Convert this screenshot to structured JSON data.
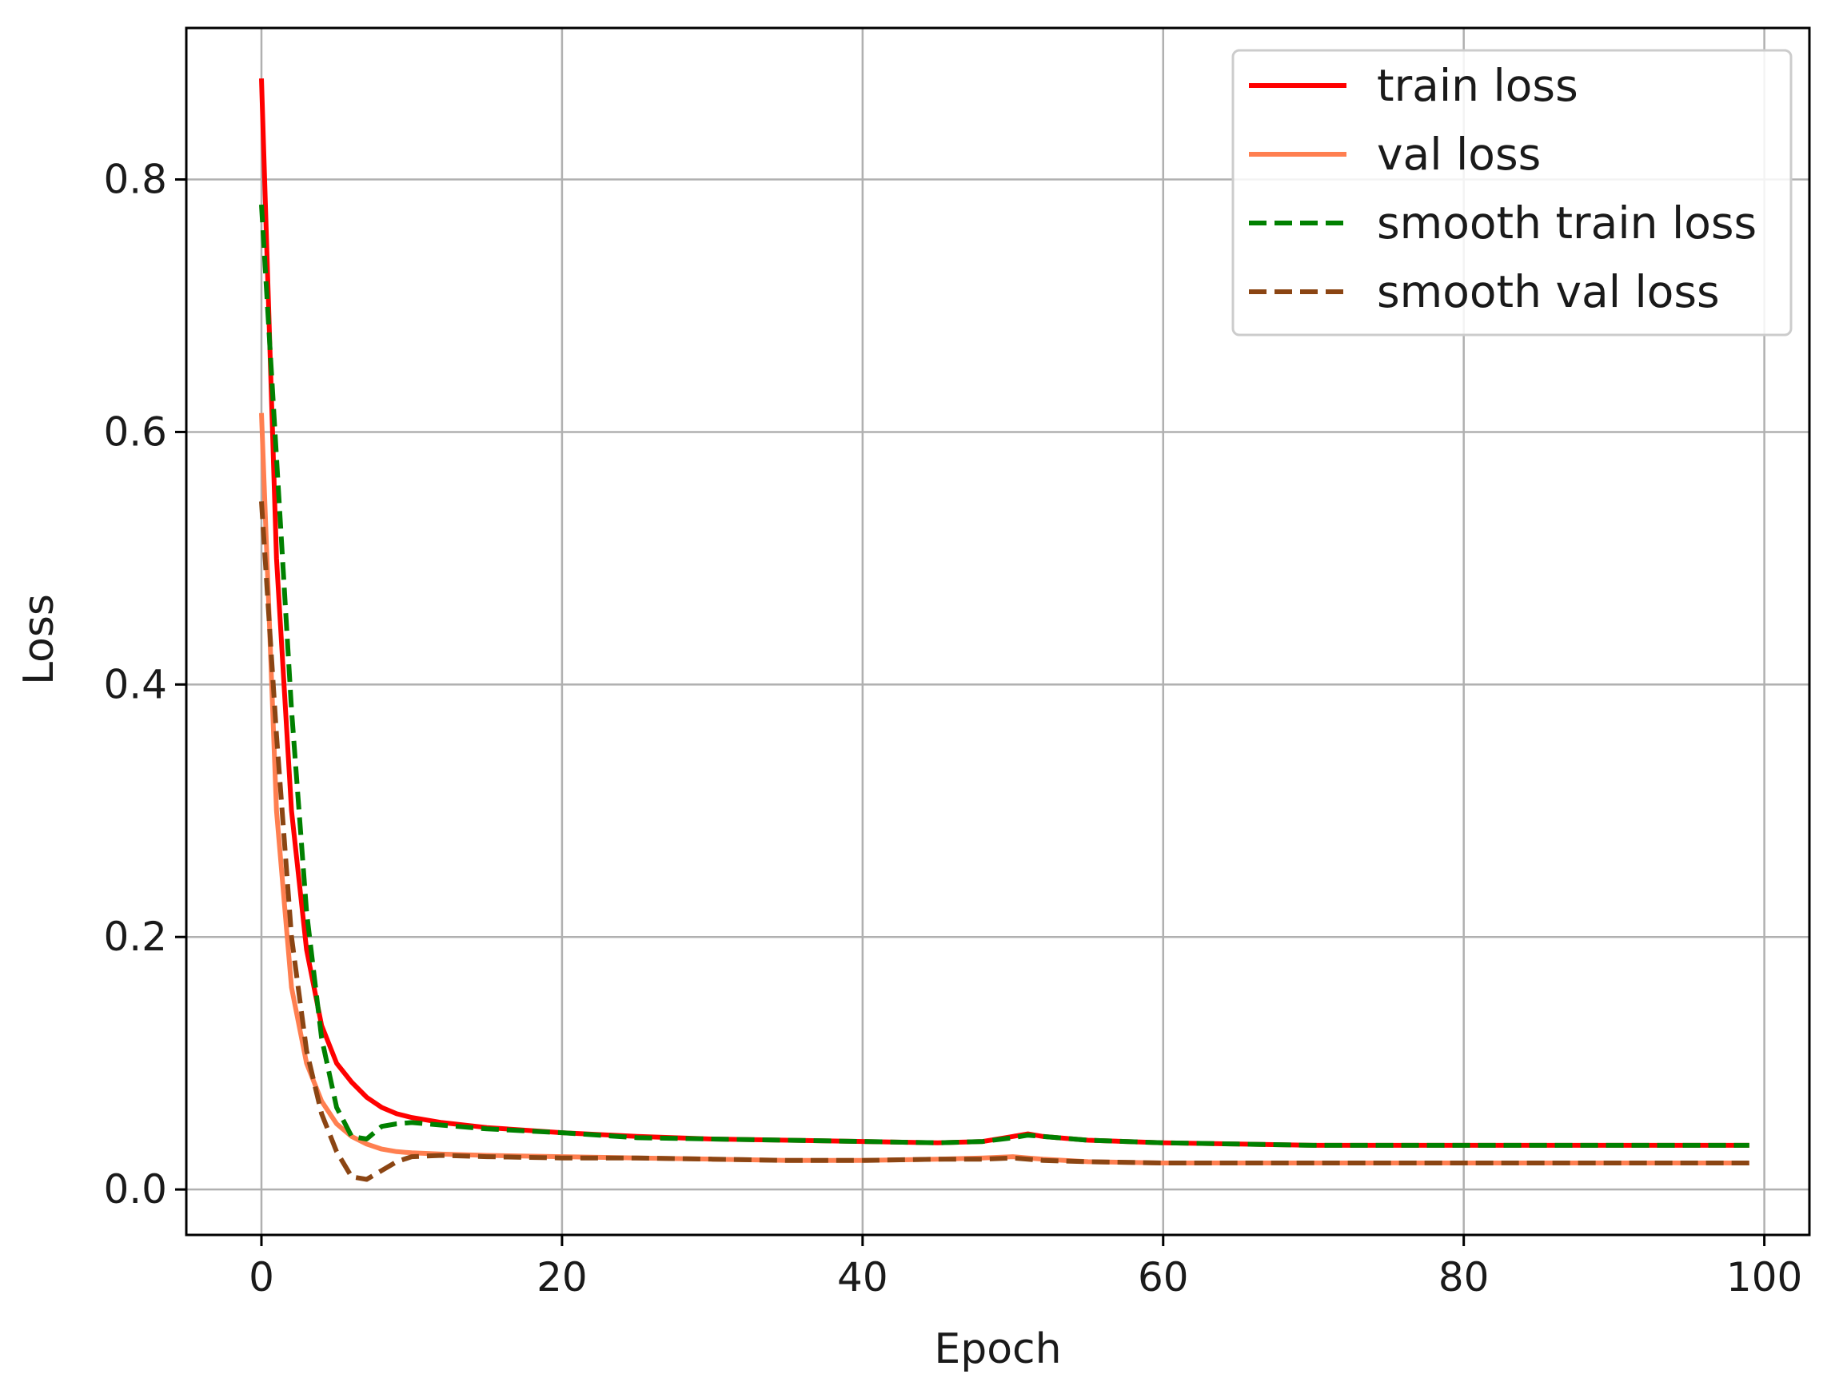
{
  "chart_data": {
    "type": "line",
    "xlabel": "Epoch",
    "ylabel": "Loss",
    "xlim": [
      -5,
      103
    ],
    "ylim": [
      -0.036,
      0.92
    ],
    "xticks": [
      0,
      20,
      40,
      60,
      80,
      100
    ],
    "yticks": [
      0.0,
      0.2,
      0.4,
      0.6,
      0.8
    ],
    "xtick_labels": [
      "0",
      "20",
      "40",
      "60",
      "80",
      "100"
    ],
    "ytick_labels": [
      "0.0",
      "0.2",
      "0.4",
      "0.6",
      "0.8"
    ],
    "grid": true,
    "legend_position": "top-right",
    "series": [
      {
        "name": "train loss",
        "color": "#ff0000",
        "style": "solid",
        "x": [
          0,
          1,
          2,
          3,
          4,
          5,
          6,
          7,
          8,
          9,
          10,
          12,
          15,
          20,
          25,
          30,
          35,
          40,
          45,
          48,
          50,
          51,
          52,
          53,
          55,
          60,
          65,
          70,
          75,
          80,
          85,
          90,
          95,
          99
        ],
        "y": [
          0.88,
          0.5,
          0.3,
          0.19,
          0.13,
          0.1,
          0.085,
          0.073,
          0.065,
          0.06,
          0.057,
          0.053,
          0.049,
          0.045,
          0.042,
          0.04,
          0.039,
          0.038,
          0.037,
          0.038,
          0.042,
          0.044,
          0.042,
          0.041,
          0.039,
          0.037,
          0.036,
          0.035,
          0.035,
          0.035,
          0.035,
          0.035,
          0.035,
          0.035
        ]
      },
      {
        "name": "val loss",
        "color": "#ff7f50",
        "style": "solid",
        "x": [
          0,
          1,
          2,
          3,
          4,
          5,
          6,
          7,
          8,
          9,
          10,
          12,
          15,
          20,
          25,
          30,
          35,
          40,
          45,
          48,
          50,
          51,
          52,
          55,
          60,
          65,
          70,
          75,
          80,
          85,
          90,
          95,
          99
        ],
        "y": [
          0.615,
          0.3,
          0.16,
          0.1,
          0.07,
          0.052,
          0.042,
          0.036,
          0.032,
          0.03,
          0.029,
          0.028,
          0.027,
          0.026,
          0.025,
          0.024,
          0.023,
          0.023,
          0.024,
          0.025,
          0.026,
          0.025,
          0.024,
          0.022,
          0.021,
          0.021,
          0.021,
          0.021,
          0.021,
          0.021,
          0.021,
          0.021,
          0.021
        ]
      },
      {
        "name": "smooth train loss",
        "color": "#008000",
        "style": "dashed",
        "x": [
          0,
          1,
          2,
          3,
          4,
          5,
          6,
          7,
          8,
          9,
          10,
          12,
          15,
          20,
          25,
          30,
          35,
          40,
          45,
          48,
          50,
          51,
          52,
          53,
          55,
          60,
          65,
          70,
          75,
          80,
          85,
          90,
          95,
          99
        ],
        "y": [
          0.78,
          0.58,
          0.38,
          0.22,
          0.12,
          0.065,
          0.042,
          0.04,
          0.05,
          0.052,
          0.053,
          0.051,
          0.048,
          0.045,
          0.041,
          0.04,
          0.039,
          0.038,
          0.037,
          0.038,
          0.041,
          0.043,
          0.042,
          0.041,
          0.039,
          0.037,
          0.036,
          0.035,
          0.035,
          0.035,
          0.035,
          0.035,
          0.035,
          0.035
        ]
      },
      {
        "name": "smooth val loss",
        "color": "#8b4513",
        "style": "dashed",
        "x": [
          0,
          1,
          2,
          3,
          4,
          5,
          6,
          7,
          8,
          9,
          10,
          12,
          15,
          20,
          25,
          30,
          35,
          40,
          45,
          48,
          50,
          51,
          52,
          55,
          60,
          65,
          70,
          75,
          80,
          85,
          90,
          95,
          99
        ],
        "y": [
          0.545,
          0.36,
          0.2,
          0.11,
          0.06,
          0.03,
          0.01,
          0.008,
          0.015,
          0.022,
          0.026,
          0.027,
          0.026,
          0.025,
          0.025,
          0.024,
          0.023,
          0.023,
          0.024,
          0.024,
          0.025,
          0.024,
          0.023,
          0.022,
          0.021,
          0.021,
          0.021,
          0.021,
          0.021,
          0.021,
          0.021,
          0.021,
          0.021
        ]
      }
    ]
  }
}
